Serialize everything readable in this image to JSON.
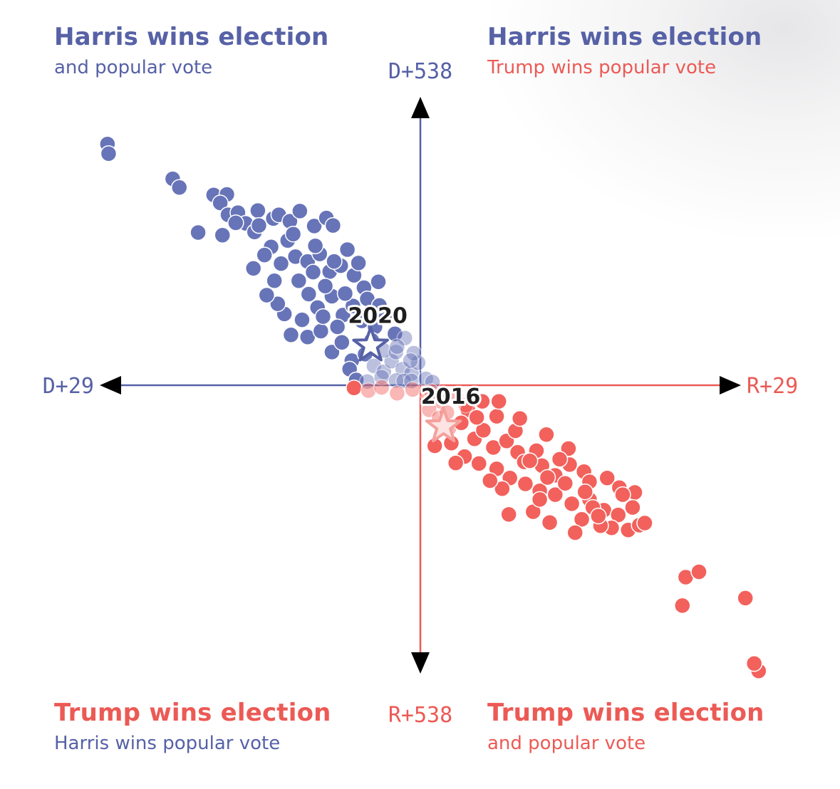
{
  "quadrants": {
    "top_left": {
      "headline": "Harris wins election",
      "subline": "and popular vote"
    },
    "top_right": {
      "headline": "Harris wins election",
      "subline": "Trump wins popular vote"
    },
    "bottom_left": {
      "headline": "Trump wins election",
      "subline": "Harris wins popular vote"
    },
    "bottom_right": {
      "headline": "Trump wins election",
      "subline": "and popular vote"
    }
  },
  "colors": {
    "harris": "#6774b8",
    "trump": "#f2615c",
    "harris_text": "#5661a6",
    "trump_text": "#ec5a55"
  },
  "chart_data": {
    "type": "scatter",
    "x_axis": {
      "left_label": "D+29",
      "right_label": "R+29",
      "range": [
        -29,
        29
      ],
      "quantity": "popular vote margin (D negative, R positive)"
    },
    "y_axis": {
      "top_label": "D+538",
      "bottom_label": "R+538",
      "range": [
        -538,
        538
      ],
      "quantity": "electoral vote margin (D positive, R negative)"
    },
    "annotations": [
      {
        "label": "2020",
        "x": -4.5,
        "y": 74
      },
      {
        "label": "2016",
        "x": 2.1,
        "y": -77
      }
    ],
    "series": [
      {
        "key": "harris_wins",
        "points": [
          [
            -28.3,
            450
          ],
          [
            -28.2,
            432
          ],
          [
            -22.4,
            385
          ],
          [
            -21.8,
            369
          ],
          [
            -18.7,
            355
          ],
          [
            -17.5,
            356
          ],
          [
            -18.1,
            340
          ],
          [
            -17.4,
            318
          ],
          [
            -16.5,
            322
          ],
          [
            -15.8,
            302
          ],
          [
            -14.7,
            326
          ],
          [
            -13.3,
            311
          ],
          [
            -12.8,
            318
          ],
          [
            -11.8,
            306
          ],
          [
            -10.9,
            325
          ],
          [
            -9.6,
            297
          ],
          [
            -8.5,
            312
          ],
          [
            -7.9,
            298
          ],
          [
            -17.9,
            280
          ],
          [
            -16.7,
            303
          ],
          [
            -15.0,
            286
          ],
          [
            -13.5,
            258
          ],
          [
            -12.0,
            270
          ],
          [
            -11.3,
            240
          ],
          [
            -10.2,
            231
          ],
          [
            -9.1,
            245
          ],
          [
            -8.2,
            212
          ],
          [
            -7.2,
            223
          ],
          [
            -6.0,
            205
          ],
          [
            -5.1,
            182
          ],
          [
            -3.8,
            193
          ],
          [
            -4.8,
            161
          ],
          [
            -11.0,
            195
          ],
          [
            -10.1,
            170
          ],
          [
            -9.3,
            145
          ],
          [
            -8.0,
            166
          ],
          [
            -7.0,
            131
          ],
          [
            -6.1,
            148
          ],
          [
            -5.3,
            120
          ],
          [
            -4.1,
            109
          ],
          [
            -3.1,
            128
          ],
          [
            -2.3,
            96
          ],
          [
            -1.4,
            88
          ],
          [
            -10.2,
            90
          ],
          [
            -9.0,
            101
          ],
          [
            -8.0,
            62
          ],
          [
            -7.1,
            80
          ],
          [
            -6.2,
            46
          ],
          [
            -5.0,
            58
          ],
          [
            -4.2,
            36
          ],
          [
            -3.3,
            25
          ],
          [
            -2.6,
            45
          ],
          [
            -1.6,
            30
          ],
          [
            -0.8,
            22
          ],
          [
            -0.2,
            42
          ],
          [
            -6.4,
            30
          ],
          [
            -5.8,
            10
          ],
          [
            -4.8,
            7
          ],
          [
            -3.5,
            15
          ],
          [
            -2.2,
            9
          ],
          [
            -1.5,
            8
          ],
          [
            -0.8,
            8
          ],
          [
            0.5,
            12
          ],
          [
            1.1,
            6
          ],
          [
            -12.6,
            227
          ],
          [
            -13.2,
            195
          ],
          [
            -14.1,
            243
          ],
          [
            -12.3,
            133
          ],
          [
            -9.7,
            211
          ],
          [
            -6.8,
            171
          ],
          [
            -5.6,
            228
          ],
          [
            -3.3,
            65
          ],
          [
            -0.6,
            60
          ],
          [
            -10.7,
            122
          ],
          [
            -8.8,
            128
          ],
          [
            -11.5,
            282
          ],
          [
            -20.1,
            285
          ],
          [
            -14.6,
            298
          ],
          [
            -15.1,
            218
          ],
          [
            -6.6,
            253
          ],
          [
            -7.8,
            231
          ],
          [
            -7.5,
            109
          ],
          [
            -4.4,
            84
          ],
          [
            -2.2,
            62
          ],
          [
            -0.9,
            46
          ],
          [
            -3.7,
            149
          ],
          [
            -2.1,
            72
          ],
          [
            -12.9,
            152
          ],
          [
            -11.7,
            94
          ],
          [
            -8.6,
            185
          ],
          [
            -13.9,
            168
          ],
          [
            -9.5,
            260
          ]
        ]
      },
      {
        "key": "trump_wins",
        "points": [
          [
            -6.0,
            -5
          ],
          [
            -4.7,
            -10
          ],
          [
            -3.5,
            -4
          ],
          [
            -2.1,
            -15
          ],
          [
            -0.7,
            -8
          ],
          [
            0.6,
            -14
          ],
          [
            1.8,
            -30
          ],
          [
            3.2,
            -20
          ],
          [
            4.3,
            -46
          ],
          [
            5.6,
            -30
          ],
          [
            6.9,
            -58
          ],
          [
            7.1,
            -30
          ],
          [
            0.8,
            -46
          ],
          [
            1.7,
            -61
          ],
          [
            2.6,
            -80
          ],
          [
            3.7,
            -70
          ],
          [
            4.9,
            -100
          ],
          [
            5.7,
            -84
          ],
          [
            6.6,
            -116
          ],
          [
            7.8,
            -104
          ],
          [
            8.8,
            -125
          ],
          [
            9.4,
            -143
          ],
          [
            10.5,
            -122
          ],
          [
            11.0,
            -150
          ],
          [
            12.2,
            -168
          ],
          [
            13.5,
            -148
          ],
          [
            14.8,
            -161
          ],
          [
            15.3,
            -180
          ],
          [
            16.9,
            -173
          ],
          [
            18.0,
            -191
          ],
          [
            19.4,
            -200
          ],
          [
            1.3,
            -113
          ],
          [
            2.8,
            -108
          ],
          [
            4.0,
            -133
          ],
          [
            5.3,
            -146
          ],
          [
            6.9,
            -156
          ],
          [
            8.1,
            -173
          ],
          [
            9.5,
            -184
          ],
          [
            10.8,
            -197
          ],
          [
            12.2,
            -204
          ],
          [
            13.7,
            -221
          ],
          [
            15.3,
            -213
          ],
          [
            16.6,
            -233
          ],
          [
            17.9,
            -242
          ],
          [
            19.2,
            -228
          ],
          [
            10.2,
            -236
          ],
          [
            11.7,
            -256
          ],
          [
            14.6,
            -250
          ],
          [
            17.3,
            -266
          ],
          [
            18.8,
            -270
          ],
          [
            19.8,
            -261
          ],
          [
            20.3,
            -257
          ],
          [
            5.1,
            -60
          ],
          [
            8.6,
            -85
          ],
          [
            3.2,
            -145
          ],
          [
            11.4,
            -92
          ],
          [
            13.4,
            -118
          ],
          [
            7.4,
            -193
          ],
          [
            9.9,
            -141
          ],
          [
            14.9,
            -199
          ],
          [
            16.3,
            -262
          ],
          [
            6.3,
            -178
          ],
          [
            12.6,
            -138
          ],
          [
            4.1,
            -37
          ],
          [
            9.0,
            -62
          ],
          [
            10.8,
            -213
          ],
          [
            15.6,
            -228
          ],
          [
            8.0,
            -241
          ],
          [
            13.1,
            -183
          ],
          [
            18.3,
            -204
          ],
          [
            1.0,
            -12
          ],
          [
            2.4,
            -51
          ],
          [
            14.0,
            -275
          ],
          [
            16.1,
            -244
          ],
          [
            11.5,
            -172
          ],
          [
            24.0,
            -358
          ],
          [
            25.2,
            -348
          ],
          [
            23.7,
            -411
          ],
          [
            29.4,
            -397
          ],
          [
            30.6,
            -533
          ],
          [
            30.2,
            -519
          ]
        ]
      }
    ]
  }
}
